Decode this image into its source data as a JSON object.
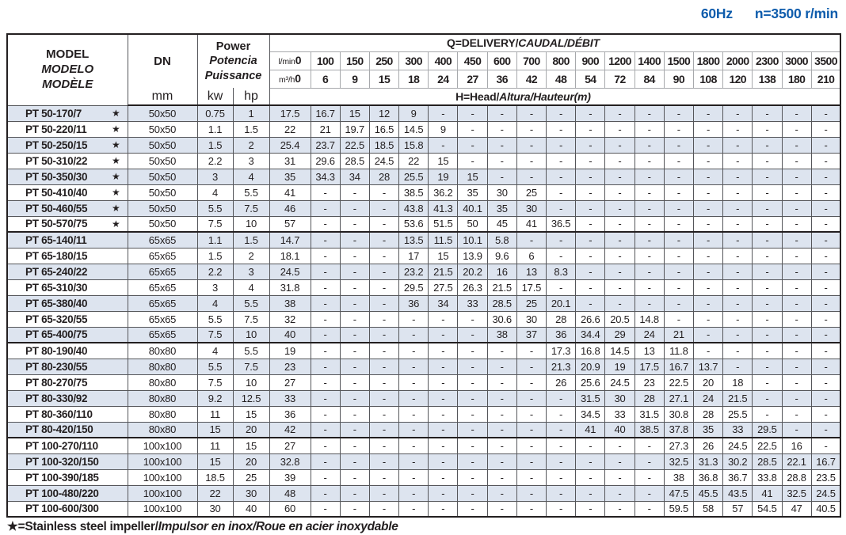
{
  "page": {
    "frequency": "60Hz",
    "speed": "n=3500 r/min",
    "footnote": {
      "prefix": "★=Stainless steel impeller/",
      "italic_rest": "Impulsor en inox/Roue en acier inoxydable"
    },
    "colors": {
      "accent_blue": "#0e5cac",
      "row_shade": "#dde4ef",
      "grid_line": "#55565a",
      "heavy_line": "#231f20"
    }
  },
  "table": {
    "star_symbol": "★",
    "header": {
      "model_en": "MODEL",
      "model_es": "MODELO",
      "model_fr": "MODÈLE",
      "dn_label": "DN",
      "dn_unit": "mm",
      "power_en": "Power",
      "power_es": "Potencia",
      "power_fr": "Puissance",
      "kw_label": "kw",
      "hp_label": "hp",
      "q_title_main": "Q=DELIVERY/",
      "q_title_italic": "CAUDAL/DÉBIT",
      "h_title_main": "H=Head/",
      "h_title_italic": "Altura/Hauteur(m)",
      "lmin_label": "l/min",
      "m3h_label": "m³/h",
      "lmin_values": [
        "0",
        "100",
        "150",
        "250",
        "300",
        "400",
        "450",
        "600",
        "700",
        "800",
        "900",
        "1200",
        "1400",
        "1500",
        "1800",
        "2000",
        "2300",
        "3000",
        "3500"
      ],
      "m3h_values": [
        "0",
        "6",
        "9",
        "15",
        "18",
        "24",
        "27",
        "36",
        "42",
        "48",
        "54",
        "72",
        "84",
        "90",
        "108",
        "120",
        "138",
        "180",
        "210"
      ]
    },
    "rows": [
      {
        "model": "PT 50-170/7",
        "star": true,
        "dn": "50x50",
        "kw": "0.75",
        "hp": "1",
        "heads": [
          "17.5",
          "16.7",
          "15",
          "12",
          "9",
          "-",
          "-",
          "-",
          "-",
          "-",
          "-",
          "-",
          "-",
          "-",
          "-",
          "-",
          "-",
          "-",
          "-"
        ]
      },
      {
        "model": "PT 50-220/11",
        "star": true,
        "dn": "50x50",
        "kw": "1.1",
        "hp": "1.5",
        "heads": [
          "22",
          "21",
          "19.7",
          "16.5",
          "14.5",
          "9",
          "-",
          "-",
          "-",
          "-",
          "-",
          "-",
          "-",
          "-",
          "-",
          "-",
          "-",
          "-",
          "-"
        ]
      },
      {
        "model": "PT 50-250/15",
        "star": true,
        "dn": "50x50",
        "kw": "1.5",
        "hp": "2",
        "heads": [
          "25.4",
          "23.7",
          "22.5",
          "18.5",
          "15.8",
          "-",
          "-",
          "-",
          "-",
          "-",
          "-",
          "-",
          "-",
          "-",
          "-",
          "-",
          "-",
          "-",
          "-"
        ]
      },
      {
        "model": "PT 50-310/22",
        "star": true,
        "dn": "50x50",
        "kw": "2.2",
        "hp": "3",
        "heads": [
          "31",
          "29.6",
          "28.5",
          "24.5",
          "22",
          "15",
          "-",
          "-",
          "-",
          "-",
          "-",
          "-",
          "-",
          "-",
          "-",
          "-",
          "-",
          "-",
          "-"
        ]
      },
      {
        "model": "PT 50-350/30",
        "star": true,
        "dn": "50x50",
        "kw": "3",
        "hp": "4",
        "heads": [
          "35",
          "34.3",
          "34",
          "28",
          "25.5",
          "19",
          "15",
          "-",
          "-",
          "-",
          "-",
          "-",
          "-",
          "-",
          "-",
          "-",
          "-",
          "-",
          "-"
        ]
      },
      {
        "model": "PT 50-410/40",
        "star": true,
        "dn": "50x50",
        "kw": "4",
        "hp": "5.5",
        "heads": [
          "41",
          "-",
          "-",
          "-",
          "38.5",
          "36.2",
          "35",
          "30",
          "25",
          "-",
          "-",
          "-",
          "-",
          "-",
          "-",
          "-",
          "-",
          "-",
          "-"
        ]
      },
      {
        "model": "PT 50-460/55",
        "star": true,
        "dn": "50x50",
        "kw": "5.5",
        "hp": "7.5",
        "heads": [
          "46",
          "-",
          "-",
          "-",
          "43.8",
          "41.3",
          "40.1",
          "35",
          "30",
          "-",
          "-",
          "-",
          "-",
          "-",
          "-",
          "-",
          "-",
          "-",
          "-"
        ]
      },
      {
        "model": "PT 50-570/75",
        "star": true,
        "dn": "50x50",
        "kw": "7.5",
        "hp": "10",
        "heads": [
          "57",
          "-",
          "-",
          "-",
          "53.6",
          "51.5",
          "50",
          "45",
          "41",
          "36.5",
          "-",
          "-",
          "-",
          "-",
          "-",
          "-",
          "-",
          "-",
          "-"
        ]
      },
      {
        "model": "PT 65-140/11",
        "star": false,
        "group_start": true,
        "dn": "65x65",
        "kw": "1.1",
        "hp": "1.5",
        "heads": [
          "14.7",
          "-",
          "-",
          "-",
          "13.5",
          "11.5",
          "10.1",
          "5.8",
          "-",
          "-",
          "-",
          "-",
          "-",
          "-",
          "-",
          "-",
          "-",
          "-",
          "-"
        ]
      },
      {
        "model": "PT 65-180/15",
        "star": false,
        "dn": "65x65",
        "kw": "1.5",
        "hp": "2",
        "heads": [
          "18.1",
          "-",
          "-",
          "-",
          "17",
          "15",
          "13.9",
          "9.6",
          "6",
          "-",
          "-",
          "-",
          "-",
          "-",
          "-",
          "-",
          "-",
          "-",
          "-"
        ]
      },
      {
        "model": "PT 65-240/22",
        "star": false,
        "dn": "65x65",
        "kw": "2.2",
        "hp": "3",
        "heads": [
          "24.5",
          "-",
          "-",
          "-",
          "23.2",
          "21.5",
          "20.2",
          "16",
          "13",
          "8.3",
          "-",
          "-",
          "-",
          "-",
          "-",
          "-",
          "-",
          "-",
          "-"
        ]
      },
      {
        "model": "PT 65-310/30",
        "star": false,
        "dn": "65x65",
        "kw": "3",
        "hp": "4",
        "heads": [
          "31.8",
          "-",
          "-",
          "-",
          "29.5",
          "27.5",
          "26.3",
          "21.5",
          "17.5",
          "-",
          "-",
          "-",
          "-",
          "-",
          "-",
          "-",
          "-",
          "-",
          "-"
        ]
      },
      {
        "model": "PT 65-380/40",
        "star": false,
        "dn": "65x65",
        "kw": "4",
        "hp": "5.5",
        "heads": [
          "38",
          "-",
          "-",
          "-",
          "36",
          "34",
          "33",
          "28.5",
          "25",
          "20.1",
          "-",
          "-",
          "-",
          "-",
          "-",
          "-",
          "-",
          "-",
          "-"
        ]
      },
      {
        "model": "PT 65-320/55",
        "star": false,
        "dn": "65x65",
        "kw": "5.5",
        "hp": "7.5",
        "heads": [
          "32",
          "-",
          "-",
          "-",
          "-",
          "-",
          "-",
          "30.6",
          "30",
          "28",
          "26.6",
          "20.5",
          "14.8",
          "-",
          "-",
          "-",
          "-",
          "-",
          "-"
        ]
      },
      {
        "model": "PT 65-400/75",
        "star": false,
        "dn": "65x65",
        "kw": "7.5",
        "hp": "10",
        "heads": [
          "40",
          "-",
          "-",
          "-",
          "-",
          "-",
          "-",
          "38",
          "37",
          "36",
          "34.4",
          "29",
          "24",
          "21",
          "-",
          "-",
          "-",
          "-",
          "-"
        ]
      },
      {
        "model": "PT 80-190/40",
        "star": false,
        "group_start": true,
        "dn": "80x80",
        "kw": "4",
        "hp": "5.5",
        "heads": [
          "19",
          "-",
          "-",
          "-",
          "-",
          "-",
          "-",
          "-",
          "-",
          "17.3",
          "16.8",
          "14.5",
          "13",
          "11.8",
          "-",
          "-",
          "-",
          "-",
          "-"
        ]
      },
      {
        "model": "PT 80-230/55",
        "star": false,
        "dn": "80x80",
        "kw": "5.5",
        "hp": "7.5",
        "heads": [
          "23",
          "-",
          "-",
          "-",
          "-",
          "-",
          "-",
          "-",
          "-",
          "21.3",
          "20.9",
          "19",
          "17.5",
          "16.7",
          "13.7",
          "-",
          "-",
          "-",
          "-"
        ]
      },
      {
        "model": "PT 80-270/75",
        "star": false,
        "dn": "80x80",
        "kw": "7.5",
        "hp": "10",
        "heads": [
          "27",
          "-",
          "-",
          "-",
          "-",
          "-",
          "-",
          "-",
          "-",
          "26",
          "25.6",
          "24.5",
          "23",
          "22.5",
          "20",
          "18",
          "-",
          "-",
          "-"
        ]
      },
      {
        "model": "PT 80-330/92",
        "star": false,
        "dn": "80x80",
        "kw": "9.2",
        "hp": "12.5",
        "heads": [
          "33",
          "-",
          "-",
          "-",
          "-",
          "-",
          "-",
          "-",
          "-",
          "-",
          "31.5",
          "30",
          "28",
          "27.1",
          "24",
          "21.5",
          "-",
          "-",
          "-"
        ]
      },
      {
        "model": "PT 80-360/110",
        "star": false,
        "dn": "80x80",
        "kw": "11",
        "hp": "15",
        "heads": [
          "36",
          "-",
          "-",
          "-",
          "-",
          "-",
          "-",
          "-",
          "-",
          "-",
          "34.5",
          "33",
          "31.5",
          "30.8",
          "28",
          "25.5",
          "-",
          "-",
          "-"
        ]
      },
      {
        "model": "PT 80-420/150",
        "star": false,
        "dn": "80x80",
        "kw": "15",
        "hp": "20",
        "heads": [
          "42",
          "-",
          "-",
          "-",
          "-",
          "-",
          "-",
          "-",
          "-",
          "-",
          "41",
          "40",
          "38.5",
          "37.8",
          "35",
          "33",
          "29.5",
          "-",
          "-"
        ]
      },
      {
        "model": "PT 100-270/110",
        "star": false,
        "group_start": true,
        "dn": "100x100",
        "kw": "11",
        "hp": "15",
        "heads": [
          "27",
          "-",
          "-",
          "-",
          "-",
          "-",
          "-",
          "-",
          "-",
          "-",
          "-",
          "-",
          "-",
          "27.3",
          "26",
          "24.5",
          "22.5",
          "16",
          "-"
        ]
      },
      {
        "model": "PT 100-320/150",
        "star": false,
        "dn": "100x100",
        "kw": "15",
        "hp": "20",
        "heads": [
          "32.8",
          "-",
          "-",
          "-",
          "-",
          "-",
          "-",
          "-",
          "-",
          "-",
          "-",
          "-",
          "-",
          "32.5",
          "31.3",
          "30.2",
          "28.5",
          "22.1",
          "16.7"
        ]
      },
      {
        "model": "PT 100-390/185",
        "star": false,
        "dn": "100x100",
        "kw": "18.5",
        "hp": "25",
        "heads": [
          "39",
          "-",
          "-",
          "-",
          "-",
          "-",
          "-",
          "-",
          "-",
          "-",
          "-",
          "-",
          "-",
          "38",
          "36.8",
          "36.7",
          "33.8",
          "28.8",
          "23.5"
        ]
      },
      {
        "model": "PT 100-480/220",
        "star": false,
        "dn": "100x100",
        "kw": "22",
        "hp": "30",
        "heads": [
          "48",
          "-",
          "-",
          "-",
          "-",
          "-",
          "-",
          "-",
          "-",
          "-",
          "-",
          "-",
          "-",
          "47.5",
          "45.5",
          "43.5",
          "41",
          "32.5",
          "24.5"
        ]
      },
      {
        "model": "PT 100-600/300",
        "star": false,
        "dn": "100x100",
        "kw": "30",
        "hp": "40",
        "heads": [
          "60",
          "-",
          "-",
          "-",
          "-",
          "-",
          "-",
          "-",
          "-",
          "-",
          "-",
          "-",
          "-",
          "59.5",
          "58",
          "57",
          "54.5",
          "47",
          "40.5"
        ]
      }
    ]
  }
}
